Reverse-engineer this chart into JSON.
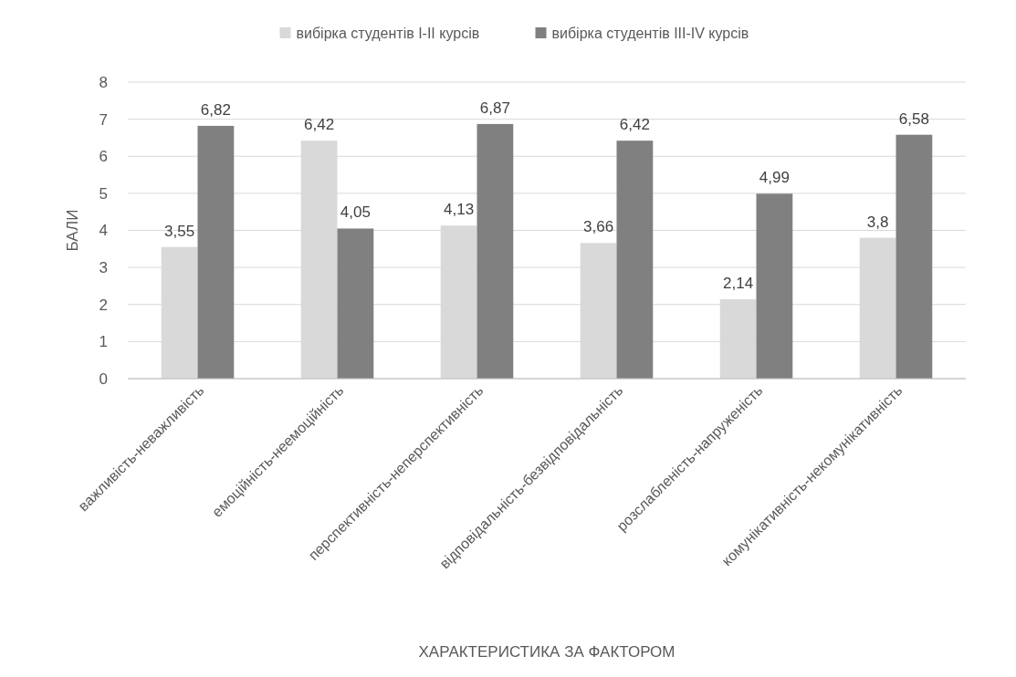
{
  "chart_data": {
    "type": "bar",
    "xlabel": "ХАРАКТЕРИСТИКА ЗА ФАКТОРОМ",
    "ylabel": "БАЛИ",
    "categories": [
      "важливість-неважливість",
      "емоційність-неемоційність",
      "перспективність-неперспективність",
      "відповідальність-безвідповідальність",
      "розслабленість-напруженість",
      "комунікативність-некомунікативність"
    ],
    "series": [
      {
        "name": "вибірка студентів I-II курсів",
        "color": "#d9d9d9",
        "values": [
          3.55,
          6.42,
          4.13,
          3.66,
          2.14,
          3.8
        ],
        "value_labels": [
          "3,55",
          "6,42",
          "4,13",
          "3,66",
          "2,14",
          "3,8"
        ]
      },
      {
        "name": "вибірка студентів III-IV курсів",
        "color": "#808080",
        "values": [
          6.82,
          4.05,
          6.87,
          6.42,
          4.99,
          6.58
        ],
        "value_labels": [
          "6,82",
          "4,05",
          "6,87",
          "6,42",
          "4,99",
          "6,58"
        ]
      }
    ],
    "ylim": [
      0,
      8
    ],
    "yticks": [
      0,
      1,
      2,
      3,
      4,
      5,
      6,
      7,
      8
    ],
    "grid": "y",
    "legend": "top"
  }
}
